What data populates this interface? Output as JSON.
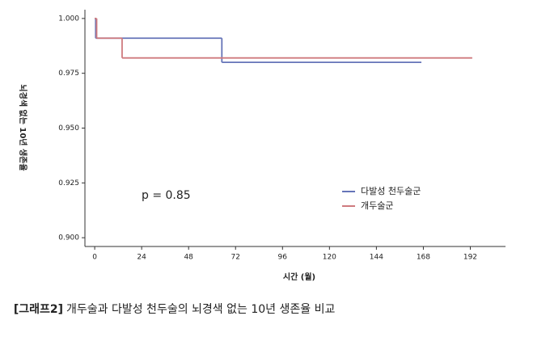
{
  "chart_data": {
    "type": "step",
    "xlabel": "시간 (월)",
    "ylabel": "뇌경색 없는 10년 생존율",
    "annotation": "p = 0.85",
    "caption_label": "[그래프2]",
    "caption": "개두술과 다발성 천두술의 뇌경색 없는 10년 생존율 비교",
    "xlim": [
      -5,
      210
    ],
    "xticks": [
      0,
      24,
      48,
      72,
      96,
      120,
      144,
      168,
      192
    ],
    "ylim": [
      0.896,
      1.004
    ],
    "yticks": [
      {
        "value": 0.9,
        "label": "0.900"
      },
      {
        "value": 0.925,
        "label": "0.925"
      },
      {
        "value": 0.95,
        "label": "0.950"
      },
      {
        "value": 0.975,
        "label": "0.975"
      },
      {
        "value": 1,
        "label": "1.000"
      }
    ],
    "series": [
      {
        "name": "다발성 천두술군",
        "color": "#6574b8",
        "x": [
          0,
          0.5,
          65,
          167
        ],
        "values": [
          1,
          0.991,
          0.98,
          0.98
        ]
      },
      {
        "name": "개두술군",
        "color": "#cf7a7e",
        "x": [
          0,
          1,
          14,
          193
        ],
        "values": [
          1,
          0.991,
          0.982,
          0.982
        ]
      }
    ]
  }
}
